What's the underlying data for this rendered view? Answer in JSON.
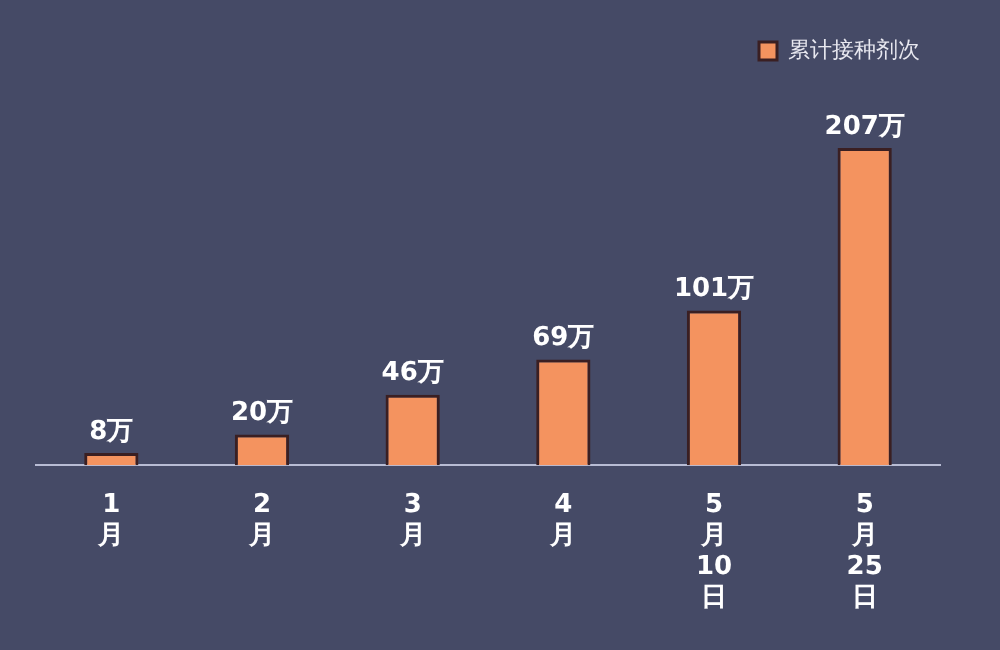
{
  "chart_data": {
    "type": "bar",
    "categories": [
      "1月",
      "2月",
      "3月",
      "4月",
      "5月10日",
      "5月25日"
    ],
    "series": [
      {
        "name": "累计接种剂次",
        "color": "#f4935f",
        "values": [
          8,
          20,
          46,
          69,
          101,
          207
        ],
        "value_labels": [
          "8万",
          "20万",
          "46万",
          "69万",
          "101万",
          "207万"
        ]
      }
    ],
    "legend": "top right",
    "grid": false
  }
}
